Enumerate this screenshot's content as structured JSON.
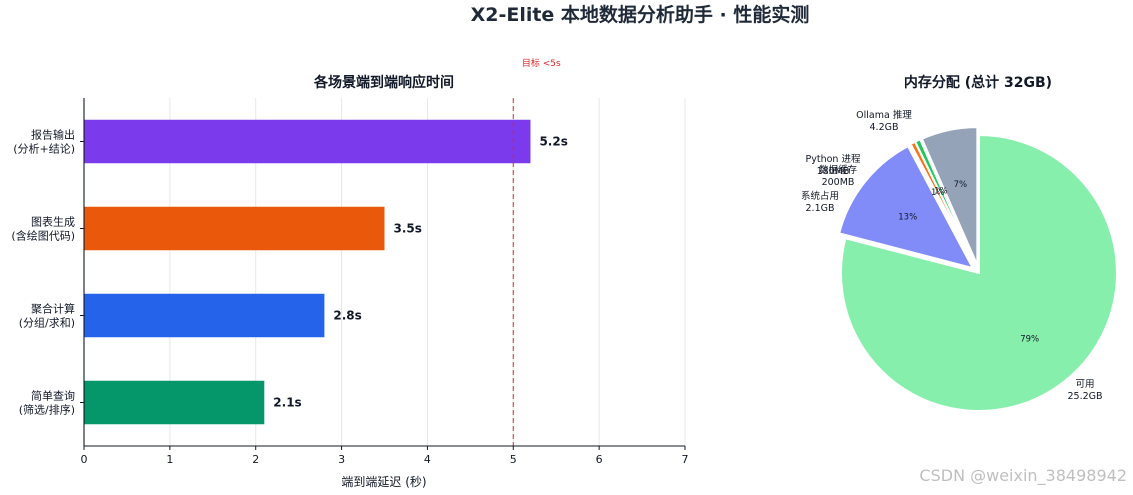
{
  "figure": {
    "suptitle": "X2-Elite 本地数据分析助手 · 性能实测"
  },
  "watermark": "CSDN @weixin_38498942",
  "chart_data": [
    {
      "type": "bar",
      "orientation": "horizontal",
      "title": "各场景端到端响应时间",
      "xlabel": "端到端延迟 (秒)",
      "ylabel": "",
      "xlim": [
        0,
        7
      ],
      "xticks": [
        "0",
        "1",
        "2",
        "3",
        "4",
        "5",
        "6",
        "7"
      ],
      "grid": true,
      "categories": [
        "报告输出\n(分析+结论)",
        "图表生成\n(含绘图代码)",
        "聚合计算\n(分组/求和)",
        "简单查询\n(筛选/排序)"
      ],
      "values": [
        5.2,
        3.5,
        2.8,
        2.1
      ],
      "value_labels": [
        "5.2s",
        "3.5s",
        "2.8s",
        "2.1s"
      ],
      "colors": [
        "#7c3aed",
        "#ea580c",
        "#2563eb",
        "#059669"
      ],
      "target_line": {
        "value": 5,
        "label": "目标 <5s",
        "color": "#dc2626"
      }
    },
    {
      "type": "pie",
      "title": "内存分配 (总计 32GB)",
      "slices": [
        {
          "label": "可用\n25.2GB",
          "value": 25.2,
          "pct": "79%",
          "color": "#86efac",
          "explode": false
        },
        {
          "label": "Ollama 推理\n4.2GB",
          "value": 4.2,
          "pct": "13%",
          "color": "#818cf8",
          "explode": true
        },
        {
          "label": "Python 进程\n180MB",
          "value": 0.18,
          "pct": "1%",
          "color": "#f97316",
          "explode": true
        },
        {
          "label": "数据缓存\n200MB",
          "value": 0.2,
          "pct": "1%",
          "color": "#22c55e",
          "explode": true
        },
        {
          "label": "系统占用\n2.1GB",
          "value": 2.1,
          "pct": "7%",
          "color": "#94a3b8",
          "explode": true
        }
      ]
    }
  ]
}
